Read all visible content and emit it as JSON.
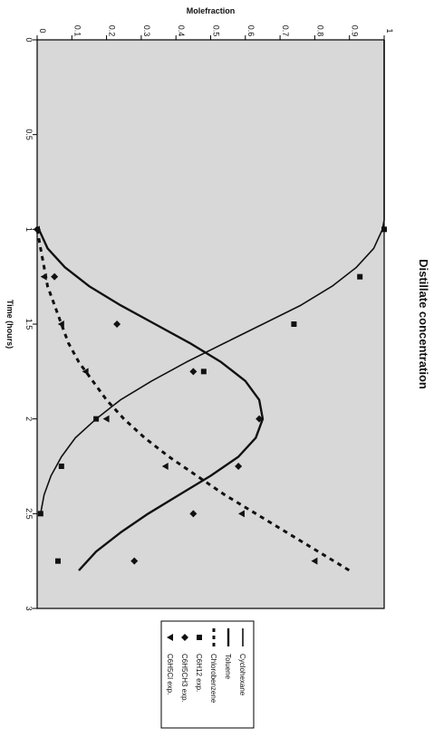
{
  "chart_data": {
    "type": "line",
    "title": "Distillate concentration",
    "xlabel": "Time (hours)",
    "ylabel": "Molefraction",
    "xlim": [
      0,
      3
    ],
    "ylim": [
      0,
      1
    ],
    "x_ticks": [
      "0",
      "0.5",
      "1",
      "1.5",
      "2",
      "2.5",
      "3"
    ],
    "y_ticks": [
      "0",
      "0.1",
      "0.2",
      "0.3",
      "0.4",
      "0.5",
      "0.6",
      "0.7",
      "0.8",
      "0.9",
      "1"
    ],
    "grid": false,
    "legend_position": "right",
    "orientation": "rotated 90 degrees clockwise",
    "plot_background": "#d8d8d8",
    "series": [
      {
        "name": "Cyclohexane",
        "style": "solid-thin",
        "x": [
          0,
          0.95,
          1.0,
          1.1,
          1.2,
          1.3,
          1.4,
          1.5,
          1.6,
          1.7,
          1.8,
          1.9,
          2.0,
          2.1,
          2.2,
          2.3,
          2.4,
          2.5
        ],
        "y": [
          1.0,
          1.0,
          0.995,
          0.97,
          0.92,
          0.85,
          0.76,
          0.65,
          0.54,
          0.43,
          0.33,
          0.24,
          0.17,
          0.11,
          0.07,
          0.04,
          0.02,
          0.01
        ]
      },
      {
        "name": "Toluene",
        "style": "solid-thick",
        "x": [
          1.0,
          1.1,
          1.2,
          1.3,
          1.4,
          1.5,
          1.6,
          1.7,
          1.8,
          1.9,
          2.0,
          2.1,
          2.2,
          2.3,
          2.4,
          2.5,
          2.6,
          2.7,
          2.8
        ],
        "y": [
          0.005,
          0.03,
          0.08,
          0.15,
          0.24,
          0.34,
          0.44,
          0.53,
          0.6,
          0.64,
          0.65,
          0.63,
          0.58,
          0.5,
          0.41,
          0.32,
          0.24,
          0.17,
          0.12
        ]
      },
      {
        "name": "Chlorobenzene",
        "style": "dashed",
        "x": [
          1.0,
          1.1,
          1.2,
          1.3,
          1.4,
          1.5,
          1.6,
          1.7,
          1.8,
          1.9,
          2.0,
          2.1,
          2.2,
          2.3,
          2.4,
          2.5,
          2.6,
          2.7,
          2.8
        ],
        "y": [
          0.0,
          0.01,
          0.02,
          0.03,
          0.05,
          0.07,
          0.09,
          0.12,
          0.16,
          0.2,
          0.25,
          0.31,
          0.38,
          0.46,
          0.54,
          0.63,
          0.72,
          0.81,
          0.9
        ]
      },
      {
        "name": "C6H12 exp.",
        "marker": "square",
        "x": [
          1.0,
          1.25,
          1.5,
          1.75,
          2.0,
          2.25,
          2.5,
          2.75
        ],
        "y": [
          1.0,
          0.93,
          0.74,
          0.48,
          0.17,
          0.07,
          0.01,
          0.06
        ]
      },
      {
        "name": "C6H5CH3 exp.",
        "marker": "diamond",
        "x": [
          1.0,
          1.25,
          1.5,
          1.75,
          2.0,
          2.25,
          2.5,
          2.75
        ],
        "y": [
          0.0,
          0.05,
          0.23,
          0.45,
          0.64,
          0.58,
          0.45,
          0.28
        ]
      },
      {
        "name": "C6H5Cl exp.",
        "marker": "triangle",
        "x": [
          1.0,
          1.25,
          1.5,
          1.75,
          2.0,
          2.25,
          2.5,
          2.75
        ],
        "y": [
          0.0,
          0.02,
          0.07,
          0.14,
          0.2,
          0.37,
          0.59,
          0.8
        ]
      }
    ]
  }
}
